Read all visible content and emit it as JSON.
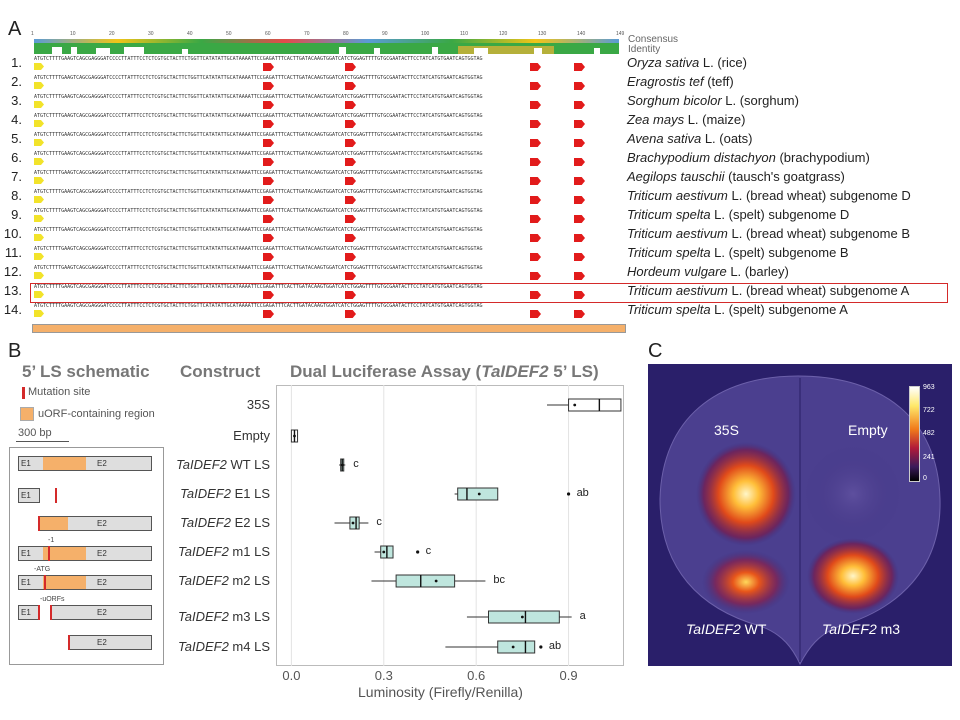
{
  "panels": {
    "A": "A",
    "B": "B",
    "C": "C"
  },
  "alignment": {
    "consensus_label": "Consensus",
    "identity_label": "Identity",
    "ruler": [
      "1",
      "10",
      "20",
      "30",
      "40",
      "50",
      "60",
      "70",
      "80",
      "90",
      "100",
      "110",
      "120",
      "130",
      "140",
      "149"
    ],
    "sequence": "ATGTCTTTTGAAGTCAGCGAGGGATCCCCTTATTTCCTCTCGTGCTACTTCTGGTTCATATATTGCATAAAATTCCGAGATTTCACTTGATACAAGTGGATCATCTGGAGTTTTGTGCGAATACTTCCTATCATGTGAATCAGTGGTAG",
    "rows": [
      {
        "num": "1.",
        "italic": "Oryza sativa",
        "plain": " L. (rice)"
      },
      {
        "num": "2.",
        "italic": "Eragrostis tef",
        "plain": " (teff)"
      },
      {
        "num": "3.",
        "italic": "Sorghum bicolor",
        "plain": " L. (sorghum)"
      },
      {
        "num": "4.",
        "italic": "Zea mays",
        "plain": " L. (maize)"
      },
      {
        "num": "5.",
        "italic": "Avena sativa",
        "plain": " L. (oats)"
      },
      {
        "num": "6.",
        "italic": "Brachypodium distachyon",
        "plain": " (brachypodium)"
      },
      {
        "num": "7.",
        "italic": "Aegilops tauschii",
        "plain": " (tausch's goatgrass)"
      },
      {
        "num": "8.",
        "italic": "Triticum aestivum",
        "plain": " L. (bread wheat) subgenome D"
      },
      {
        "num": "9.",
        "italic": "Triticum spelta",
        "plain": " L. (spelt) subgenome D"
      },
      {
        "num": "10.",
        "italic": "Triticum aestivum",
        "plain": " L. (bread wheat) subgenome B"
      },
      {
        "num": "11.",
        "italic": "Triticum spelta",
        "plain": " L. (spelt) subgenome B"
      },
      {
        "num": "12.",
        "italic": "Hordeum vulgare",
        "plain": " L. (barley)"
      },
      {
        "num": "13.",
        "italic": "Triticum aestivum",
        "plain": " L. (bread wheat) subgenome A"
      },
      {
        "num": "14.",
        "italic": "Triticum spelta",
        "plain": " L. (spelt) subgenome A"
      }
    ],
    "highlight_row": 13,
    "colors": {
      "identity": "#3aa845",
      "partial": "#b5b03a",
      "uorf_arrow": "#e21b1b",
      "start_arrow": "#f2e32a",
      "highlight": "#d42a2a",
      "region_bar": "#f5b06a"
    }
  },
  "schematic": {
    "title": "5’ LS schematic",
    "legend_mutation": "Mutation site",
    "legend_uorf": "uORF-containing region",
    "scale": "300 bp",
    "e1": "E1",
    "e2": "E2",
    "note_m1": "-1",
    "note_m2": "-ATG",
    "note_m3": "-uORFs"
  },
  "construct_header": "Construct",
  "assay_title": {
    "prefix": "Dual Luciferase Assay (",
    "gene": "TaIDEF2",
    "suffix": " 5’ LS)"
  },
  "chart_data": {
    "type": "boxplot",
    "orientation": "horizontal",
    "xlabel": "Luminosity (Firefly/Renilla)",
    "xlim": [
      -0.05,
      1.08
    ],
    "xticks": [
      0.0,
      0.3,
      0.6,
      0.9
    ],
    "xtick_labels": [
      "0.0",
      "0.3",
      "0.6",
      "0.9"
    ],
    "grid": true,
    "colors": {
      "control": "#ffffff",
      "construct": "#bfe6de"
    },
    "categories": [
      {
        "gene": "",
        "label": "35S",
        "min": 0.83,
        "q1": 0.9,
        "median": 1.0,
        "q3": 1.07,
        "max": 1.07,
        "mean": 0.92,
        "outliers": [],
        "sig": "",
        "fill": "control"
      },
      {
        "gene": "",
        "label": "Empty",
        "min": 0.0,
        "q1": 0.0,
        "median": 0.01,
        "q3": 0.02,
        "max": 0.02,
        "mean": 0.01,
        "outliers": [],
        "sig": "",
        "fill": "control"
      },
      {
        "gene": "TaIDEF2",
        "label": " WT LS",
        "min": 0.155,
        "q1": 0.16,
        "median": 0.165,
        "q3": 0.17,
        "max": 0.175,
        "mean": 0.165,
        "outliers": [],
        "sig": "c",
        "fill": "construct"
      },
      {
        "gene": "TaIDEF2",
        "label": " E1 LS",
        "min": 0.53,
        "q1": 0.54,
        "median": 0.57,
        "q3": 0.67,
        "max": 0.67,
        "mean": 0.61,
        "outliers": [
          0.9
        ],
        "sig": "ab",
        "fill": "construct"
      },
      {
        "gene": "TaIDEF2",
        "label": " E2 LS",
        "min": 0.14,
        "q1": 0.19,
        "median": 0.21,
        "q3": 0.22,
        "max": 0.25,
        "mean": 0.2,
        "outliers": [],
        "sig": "c",
        "fill": "construct"
      },
      {
        "gene": "TaIDEF2",
        "label": " m1 LS",
        "min": 0.27,
        "q1": 0.29,
        "median": 0.31,
        "q3": 0.33,
        "max": 0.33,
        "mean": 0.3,
        "outliers": [
          0.41
        ],
        "sig": "c",
        "fill": "construct"
      },
      {
        "gene": "TaIDEF2",
        "label": " m2 LS",
        "min": 0.26,
        "q1": 0.34,
        "median": 0.42,
        "q3": 0.53,
        "max": 0.63,
        "mean": 0.47,
        "outliers": [],
        "sig": "bc",
        "fill": "construct"
      },
      {
        "gene": "TaIDEF2",
        "label": " m3 LS",
        "min": 0.57,
        "q1": 0.64,
        "median": 0.76,
        "q3": 0.87,
        "max": 0.91,
        "mean": 0.75,
        "outliers": [],
        "sig": "a",
        "fill": "construct"
      },
      {
        "gene": "TaIDEF2",
        "label": " m4 LS",
        "min": 0.5,
        "q1": 0.67,
        "median": 0.76,
        "q3": 0.79,
        "max": 0.79,
        "mean": 0.72,
        "outliers": [
          0.81
        ],
        "sig": "ab",
        "fill": "construct"
      }
    ]
  },
  "heatmap": {
    "labels": {
      "top_left": "35S",
      "top_right": "Empty",
      "bottom_left_gene": "TaIDEF2",
      "bottom_left_suffix": " WT",
      "bottom_right_gene": "TaIDEF2",
      "bottom_right_suffix": " m3"
    },
    "colorbar": [
      "963",
      "722",
      "482",
      "241",
      "0"
    ]
  }
}
